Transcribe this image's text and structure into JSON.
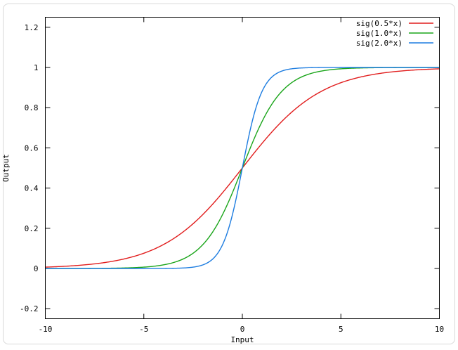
{
  "page": {
    "background": "#ffffff",
    "frame_border_color": "#d9d9d9"
  },
  "chart_data": {
    "type": "line",
    "title": "",
    "xlabel": "Input",
    "ylabel": "Output",
    "xlim": [
      -10,
      10
    ],
    "ylim": [
      -0.25,
      1.25
    ],
    "grid": false,
    "axis_color": "#000000",
    "tick_length": 7,
    "ticks_mirrored": true,
    "legend_position": "top-right-inside",
    "xticks": [
      {
        "value": -10,
        "label": "-10"
      },
      {
        "value": -5,
        "label": "-5"
      },
      {
        "value": 0,
        "label": "0"
      },
      {
        "value": 5,
        "label": "5"
      },
      {
        "value": 10,
        "label": "10"
      }
    ],
    "yticks": [
      {
        "value": -0.2,
        "label": "-0.2"
      },
      {
        "value": 0,
        "label": "0"
      },
      {
        "value": 0.2,
        "label": "0.2"
      },
      {
        "value": 0.4,
        "label": "0.4"
      },
      {
        "value": 0.6,
        "label": "0.6"
      },
      {
        "value": 0.8,
        "label": "0.8"
      },
      {
        "value": 1,
        "label": "1"
      },
      {
        "value": 1.2,
        "label": "1.2"
      }
    ],
    "series": [
      {
        "name": "sig(0.5*x)",
        "formula": "1/(1+exp(-0.5*x))",
        "coefficient": 0.5,
        "color": "#e11d1d",
        "x_domain": [
          -10,
          10
        ],
        "sample_step": 0.05
      },
      {
        "name": "sig(1.0*x)",
        "formula": "1/(1+exp(-1.0*x))",
        "coefficient": 1.0,
        "color": "#1aa51a",
        "x_domain": [
          -10,
          10
        ],
        "sample_step": 0.05
      },
      {
        "name": "sig(2.0*x)",
        "formula": "1/(1+exp(-2.0*x))",
        "coefficient": 2.0,
        "color": "#1c7ce0",
        "x_domain": [
          -10,
          10
        ],
        "sample_step": 0.05
      }
    ],
    "sample_points": {
      "x": [
        -10,
        -5,
        -2,
        -1,
        0,
        1,
        2,
        5,
        10
      ],
      "sig(0.5*x)": [
        0.0067,
        0.0759,
        0.2689,
        0.3775,
        0.5,
        0.6225,
        0.7311,
        0.9241,
        0.9933
      ],
      "sig(1.0*x)": [
        0.0,
        0.0067,
        0.1192,
        0.2689,
        0.5,
        0.7311,
        0.8808,
        0.9933,
        1.0
      ],
      "sig(2.0*x)": [
        0.0,
        0.0,
        0.018,
        0.1192,
        0.5,
        0.8808,
        0.982,
        1.0,
        1.0
      ]
    }
  }
}
